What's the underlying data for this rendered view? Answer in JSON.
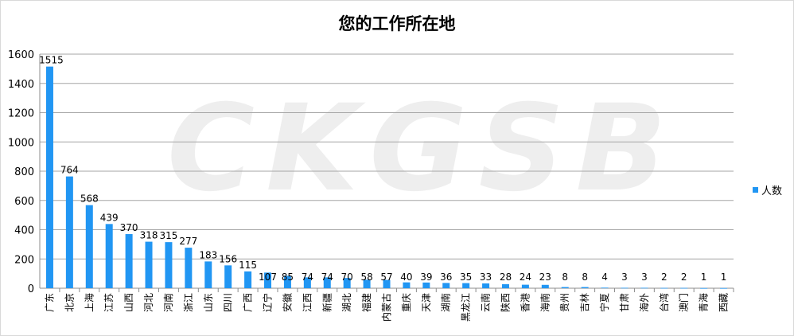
{
  "chart_data": {
    "type": "bar",
    "title": "您的工作所在地",
    "xlabel": "",
    "ylabel": "",
    "ylim": [
      0,
      1600
    ],
    "yticks": [
      0,
      200,
      400,
      600,
      800,
      1000,
      1200,
      1400,
      1600
    ],
    "grid": true,
    "legend": "right",
    "categories": [
      "广东",
      "北京",
      "上海",
      "江苏",
      "山西",
      "河北",
      "河南",
      "浙江",
      "山东",
      "四川",
      "广西",
      "辽宁",
      "安徽",
      "江西",
      "新疆",
      "湖北",
      "福建",
      "内蒙古",
      "重庆",
      "天津",
      "湖南",
      "黑龙江",
      "云南",
      "陕西",
      "香港",
      "海南",
      "贵州",
      "吉林",
      "宁夏",
      "甘肃",
      "海外",
      "台湾",
      "澳门",
      "青海",
      "西藏"
    ],
    "series": [
      {
        "name": "人数",
        "color": "#2196F3",
        "values": [
          1515,
          764,
          568,
          439,
          370,
          318,
          315,
          277,
          183,
          156,
          115,
          107,
          85,
          74,
          74,
          70,
          58,
          57,
          40,
          39,
          36,
          35,
          33,
          28,
          24,
          23,
          8,
          8,
          4,
          3,
          3,
          2,
          2,
          1,
          1
        ]
      }
    ]
  },
  "watermark": "CKGSB"
}
